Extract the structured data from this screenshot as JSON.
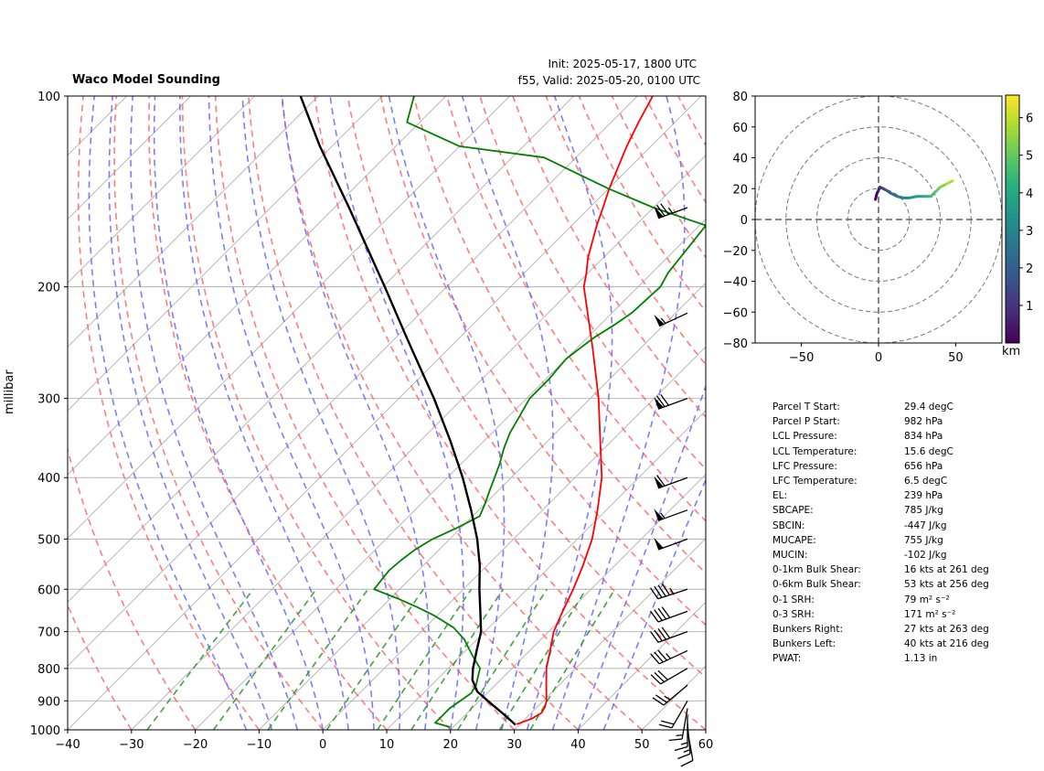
{
  "header": {
    "title": "Waco Model Sounding",
    "init": "Init: 2025-05-17, 1800 UTC",
    "valid": "f55, Valid: 2025-05-20, 0100 UTC"
  },
  "chart_data": [
    {
      "type": "line",
      "subtype": "skew-t log-p",
      "ylabel": "millibar",
      "xlim": [
        -40,
        60
      ],
      "ylim": [
        1000,
        100
      ],
      "x_ticks": [
        -40,
        -30,
        -20,
        -10,
        0,
        10,
        20,
        30,
        40,
        50,
        60
      ],
      "y_ticks": [
        100,
        200,
        300,
        400,
        500,
        600,
        700,
        800,
        900,
        1000
      ],
      "y_scale": "log",
      "grid": true,
      "series": [
        {
          "role": "temperature",
          "color": "#ff0000",
          "p": [
            980,
            960,
            940,
            920,
            900,
            850,
            800,
            750,
            700,
            650,
            600,
            550,
            500,
            450,
            400,
            350,
            300,
            250,
            200,
            190,
            180,
            160,
            150,
            140,
            120,
            110,
            100
          ],
          "t": [
            29.5,
            31.0,
            31.6,
            31.2,
            30.5,
            28.0,
            25.4,
            23.2,
            20.8,
            19.0,
            17.2,
            15.0,
            12.3,
            8.6,
            4.2,
            -1.8,
            -8.7,
            -17.5,
            -28.5,
            -30.3,
            -32.4,
            -36.1,
            -37.9,
            -39.9,
            -43.8,
            -45.7,
            -47.6
          ]
        },
        {
          "role": "dewpoint",
          "color": "#008000",
          "p": [
            990,
            975,
            950,
            925,
            900,
            875,
            850,
            825,
            800,
            760,
            720,
            690,
            660,
            640,
            620,
            600,
            580,
            560,
            540,
            520,
            500,
            480,
            460,
            440,
            420,
            400,
            380,
            360,
            340,
            320,
            300,
            280,
            260,
            250,
            240,
            230,
            220,
            200,
            190,
            160,
            150,
            140,
            125,
            120,
            110,
            100
          ],
          "t": [
            19.5,
            16.5,
            16.5,
            16.5,
            17.0,
            17.5,
            17.0,
            16.0,
            15.0,
            11.5,
            8.0,
            4.5,
            -0.5,
            -4.5,
            -9.0,
            -14.0,
            -14.3,
            -14.6,
            -14.3,
            -13.8,
            -12.7,
            -10.6,
            -8.9,
            -10.0,
            -11.3,
            -12.6,
            -14.0,
            -15.7,
            -17.2,
            -18.3,
            -19.5,
            -19.5,
            -20.0,
            -19.5,
            -18.9,
            -17.8,
            -16.9,
            -16.5,
            -17.5,
            -19.0,
            -30.0,
            -40.0,
            -55.0,
            -70.0,
            -82.0,
            -85.0
          ]
        },
        {
          "role": "parcel",
          "color": "#000000",
          "p": [
            982,
            950,
            900,
            870,
            834,
            800,
            750,
            700,
            656,
            600,
            550,
            500,
            450,
            400,
            350,
            300,
            250,
            239,
            200,
            150,
            120,
            100
          ],
          "t": [
            29.4,
            26.4,
            21.3,
            18.2,
            15.6,
            13.9,
            11.7,
            9.4,
            6.5,
            2.5,
            -1.2,
            -5.7,
            -11.2,
            -17.6,
            -25.3,
            -34.5,
            -45.9,
            -48.7,
            -59.7,
            -77.7,
            -91.9,
            -102.8
          ]
        }
      ],
      "wind_barbs": [
        {
          "p": 1000,
          "speed_kt": 12,
          "dir_deg": 170
        },
        {
          "p": 975,
          "speed_kt": 14,
          "dir_deg": 175
        },
        {
          "p": 950,
          "speed_kt": 15,
          "dir_deg": 180
        },
        {
          "p": 925,
          "speed_kt": 16,
          "dir_deg": 190
        },
        {
          "p": 900,
          "speed_kt": 20,
          "dir_deg": 210
        },
        {
          "p": 850,
          "speed_kt": 25,
          "dir_deg": 230
        },
        {
          "p": 800,
          "speed_kt": 30,
          "dir_deg": 240
        },
        {
          "p": 750,
          "speed_kt": 35,
          "dir_deg": 245
        },
        {
          "p": 700,
          "speed_kt": 40,
          "dir_deg": 250
        },
        {
          "p": 650,
          "speed_kt": 40,
          "dir_deg": 250
        },
        {
          "p": 600,
          "speed_kt": 45,
          "dir_deg": 252
        },
        {
          "p": 500,
          "speed_kt": 50,
          "dir_deg": 250
        },
        {
          "p": 450,
          "speed_kt": 55,
          "dir_deg": 250
        },
        {
          "p": 400,
          "speed_kt": 60,
          "dir_deg": 250
        },
        {
          "p": 300,
          "speed_kt": 70,
          "dir_deg": 250
        },
        {
          "p": 220,
          "speed_kt": 55,
          "dir_deg": 245
        },
        {
          "p": 150,
          "speed_kt": 75,
          "dir_deg": 250
        }
      ]
    },
    {
      "type": "line",
      "subtype": "hodograph",
      "xlim": [
        -80,
        80
      ],
      "ylim": [
        -80,
        80
      ],
      "x_ticks": [
        -50,
        0,
        50
      ],
      "y_ticks": [
        -80,
        -60,
        -40,
        -20,
        0,
        20,
        40,
        60,
        80
      ],
      "rings": [
        20,
        40,
        60,
        80
      ],
      "colorbar_label": "km",
      "colorbar_ticks": [
        1,
        2,
        3,
        4,
        5,
        6
      ],
      "colorbar_range": [
        0,
        6.6
      ],
      "series": [
        {
          "name": "hodograph",
          "u": [
            -2,
            -1,
            0,
            1,
            3,
            5,
            8,
            12,
            16,
            20,
            25,
            30,
            34,
            37,
            40,
            44,
            48
          ],
          "v": [
            13,
            17,
            19,
            21,
            20,
            19,
            17,
            15,
            14,
            14,
            15,
            15,
            15,
            18,
            21,
            23,
            25
          ],
          "z": [
            0.0,
            0.3,
            0.6,
            1.0,
            1.4,
            1.8,
            2.2,
            2.6,
            3.0,
            3.4,
            3.8,
            4.2,
            4.6,
            5.0,
            5.4,
            5.8,
            6.2
          ]
        }
      ]
    }
  ],
  "params": [
    {
      "label": "Parcel T Start:",
      "value": "29.4 degC"
    },
    {
      "label": "Parcel P Start:",
      "value": "982 hPa"
    },
    {
      "label": "LCL Pressure:",
      "value": "834 hPa"
    },
    {
      "label": "LCL Temperature:",
      "value": "15.6 degC"
    },
    {
      "label": "LFC Pressure:",
      "value": "656 hPa"
    },
    {
      "label": "LFC Temperature:",
      "value": "6.5 degC"
    },
    {
      "label": "EL:",
      "value": "239 hPa"
    },
    {
      "label": "SBCAPE:",
      "value": "785 J/kg"
    },
    {
      "label": "SBCIN:",
      "value": "-447 J/kg"
    },
    {
      "label": "MUCAPE:",
      "value": "755 J/kg"
    },
    {
      "label": "MUCIN:",
      "value": "-102 J/kg"
    },
    {
      "label": "0-1km Bulk Shear:",
      "value": "16 kts at 261 deg"
    },
    {
      "label": "0-6km Bulk Shear:",
      "value": "53 kts at 256 deg"
    },
    {
      "label": "0-1 SRH:",
      "value": "79 m² s⁻²"
    },
    {
      "label": "0-3 SRH:",
      "value": "171 m² s⁻²"
    },
    {
      "label": "Bunkers Right:",
      "value": "27 kts at 263 deg"
    },
    {
      "label": "Bunkers Left:",
      "value": "40 kts at 216 deg"
    },
    {
      "label": "PWAT:",
      "value": "1.13 in"
    }
  ],
  "colors": {
    "temperature": "#ff0000",
    "dewpoint": "#008000",
    "parcel": "#000000",
    "dry_adiabat": "#ff6666",
    "moist_adiabat": "#6666ff",
    "mixing_ratio": "#2a9a2a",
    "isotherm": "#b0b0b0"
  }
}
